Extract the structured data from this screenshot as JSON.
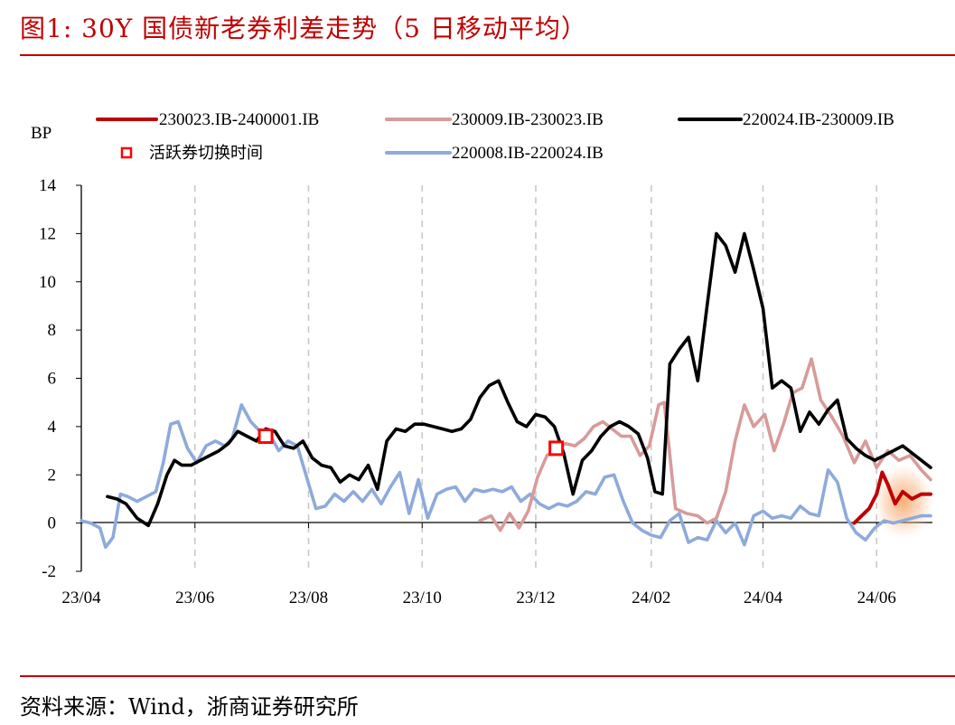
{
  "figure": {
    "title": "图1:  30Y 国债新老券利差走势（5 日移动平均）",
    "source": "资料来源：Wind，浙商证券研究所"
  },
  "chart_data": {
    "type": "line",
    "ylabel": "BP",
    "xlabel": "",
    "ylim": [
      -2,
      14
    ],
    "yticks": [
      -2,
      0,
      2,
      4,
      6,
      8,
      10,
      12,
      14
    ],
    "x_ticks": [
      "23/04",
      "23/06",
      "23/08",
      "23/10",
      "23/12",
      "24/02",
      "24/04",
      "24/06"
    ],
    "x_tick_dates": [
      "2023-04-01",
      "2023-06-01",
      "2023-08-01",
      "2023-10-01",
      "2023-12-01",
      "2024-02-01",
      "2024-04-01",
      "2024-06-01"
    ],
    "xlim": [
      "2023-04-01",
      "2024-06-30"
    ],
    "vertical_gridlines": "dashed",
    "legend_position": "top",
    "series": [
      {
        "name": "230023.IB-2400001.IB",
        "color": "#c00000",
        "highlight": true,
        "x": [
          "2024-05-20",
          "2024-05-24",
          "2024-05-28",
          "2024-06-01",
          "2024-06-04",
          "2024-06-07",
          "2024-06-11",
          "2024-06-15",
          "2024-06-20",
          "2024-06-25",
          "2024-06-30"
        ],
        "y": [
          0.0,
          0.3,
          0.6,
          1.2,
          2.1,
          1.6,
          0.8,
          1.3,
          1.0,
          1.2,
          1.2
        ]
      },
      {
        "name": "230009.IB-230023.IB",
        "color": "#d89a9a",
        "x": [
          "2023-11-01",
          "2023-11-07",
          "2023-11-12",
          "2023-11-17",
          "2023-11-22",
          "2023-11-27",
          "2023-12-02",
          "2023-12-07",
          "2023-12-12",
          "2023-12-17",
          "2023-12-22",
          "2023-12-27",
          "2024-01-01",
          "2024-01-06",
          "2024-01-11",
          "2024-01-16",
          "2024-01-21",
          "2024-01-26",
          "2024-01-31",
          "2024-02-05",
          "2024-02-08",
          "2024-02-14",
          "2024-02-20",
          "2024-02-26",
          "2024-03-02",
          "2024-03-07",
          "2024-03-12",
          "2024-03-17",
          "2024-03-22",
          "2024-03-27",
          "2024-04-02",
          "2024-04-07",
          "2024-04-12",
          "2024-04-17",
          "2024-04-22",
          "2024-04-27",
          "2024-05-02",
          "2024-05-08",
          "2024-05-14",
          "2024-05-20",
          "2024-05-26",
          "2024-06-01",
          "2024-06-07",
          "2024-06-13",
          "2024-06-19",
          "2024-06-25",
          "2024-06-30"
        ],
        "y": [
          0.1,
          0.3,
          -0.3,
          0.4,
          -0.2,
          0.5,
          1.9,
          2.8,
          3.1,
          3.3,
          3.2,
          3.5,
          4.0,
          4.2,
          3.9,
          3.6,
          3.6,
          2.8,
          3.2,
          4.9,
          5.0,
          0.6,
          0.4,
          0.3,
          0.0,
          0.2,
          1.3,
          3.4,
          4.9,
          4.0,
          4.5,
          3.0,
          4.1,
          5.4,
          5.6,
          6.8,
          5.1,
          4.4,
          3.6,
          2.5,
          3.4,
          2.3,
          3.0,
          2.6,
          2.8,
          2.2,
          1.8
        ]
      },
      {
        "name": "220024.IB-230009.IB",
        "color": "#000000",
        "x": [
          "2023-04-15",
          "2023-04-20",
          "2023-04-25",
          "2023-05-01",
          "2023-05-07",
          "2023-05-12",
          "2023-05-17",
          "2023-05-21",
          "2023-05-25",
          "2023-05-30",
          "2023-06-04",
          "2023-06-09",
          "2023-06-14",
          "2023-06-19",
          "2023-06-24",
          "2023-06-29",
          "2023-07-04",
          "2023-07-09",
          "2023-07-14",
          "2023-07-19",
          "2023-07-24",
          "2023-07-29",
          "2023-08-03",
          "2023-08-08",
          "2023-08-13",
          "2023-08-18",
          "2023-08-23",
          "2023-08-28",
          "2023-09-02",
          "2023-09-07",
          "2023-09-12",
          "2023-09-17",
          "2023-09-22",
          "2023-09-27",
          "2023-10-02",
          "2023-10-07",
          "2023-10-12",
          "2023-10-17",
          "2023-10-22",
          "2023-10-27",
          "2023-11-01",
          "2023-11-06",
          "2023-11-11",
          "2023-11-16",
          "2023-11-21",
          "2023-11-26",
          "2023-12-01",
          "2023-12-06",
          "2023-12-11",
          "2023-12-16",
          "2023-12-21",
          "2023-12-26",
          "2023-12-31",
          "2024-01-05",
          "2024-01-10",
          "2024-01-15",
          "2024-01-20",
          "2024-01-25",
          "2024-01-30",
          "2024-02-03",
          "2024-02-07",
          "2024-02-11",
          "2024-02-16",
          "2024-02-21",
          "2024-02-26",
          "2024-03-02",
          "2024-03-07",
          "2024-03-12",
          "2024-03-17",
          "2024-03-22",
          "2024-03-27",
          "2024-04-01",
          "2024-04-06",
          "2024-04-11",
          "2024-04-16",
          "2024-04-21",
          "2024-04-26",
          "2024-05-01",
          "2024-05-06",
          "2024-05-11",
          "2024-05-16",
          "2024-05-21",
          "2024-05-26",
          "2024-05-31",
          "2024-06-05",
          "2024-06-10",
          "2024-06-15",
          "2024-06-20",
          "2024-06-25",
          "2024-06-30"
        ],
        "y": [
          1.1,
          1.0,
          0.8,
          0.2,
          -0.1,
          0.8,
          2.0,
          2.6,
          2.4,
          2.4,
          2.6,
          2.8,
          3.0,
          3.3,
          3.8,
          3.6,
          3.4,
          3.9,
          3.8,
          3.2,
          3.1,
          3.4,
          2.7,
          2.4,
          2.3,
          1.7,
          2.0,
          1.8,
          2.4,
          1.4,
          3.4,
          3.9,
          3.8,
          4.1,
          4.1,
          4.0,
          3.9,
          3.8,
          3.9,
          4.3,
          5.2,
          5.7,
          5.9,
          5.0,
          4.2,
          4.0,
          4.5,
          4.4,
          4.0,
          2.9,
          1.2,
          2.6,
          3.0,
          3.6,
          4.0,
          4.2,
          4.0,
          3.7,
          2.7,
          1.3,
          1.2,
          6.6,
          7.2,
          7.7,
          5.9,
          9.0,
          12.0,
          11.5,
          10.4,
          12.0,
          10.5,
          8.9,
          5.6,
          5.9,
          5.6,
          3.8,
          4.6,
          4.1,
          4.7,
          5.1,
          3.5,
          3.1,
          2.8,
          2.6,
          2.8,
          3.0,
          3.2,
          2.9,
          2.6,
          2.3
        ]
      },
      {
        "name": "220008.IB-220024.IB",
        "color": "#8eaadb",
        "x": [
          "2023-04-01",
          "2023-04-06",
          "2023-04-11",
          "2023-04-14",
          "2023-04-18",
          "2023-04-22",
          "2023-04-26",
          "2023-05-01",
          "2023-05-06",
          "2023-05-11",
          "2023-05-15",
          "2023-05-19",
          "2023-05-23",
          "2023-05-28",
          "2023-06-02",
          "2023-06-07",
          "2023-06-12",
          "2023-06-17",
          "2023-06-21",
          "2023-06-26",
          "2023-07-01",
          "2023-07-06",
          "2023-07-11",
          "2023-07-16",
          "2023-07-21",
          "2023-07-26",
          "2023-07-31",
          "2023-08-05",
          "2023-08-10",
          "2023-08-15",
          "2023-08-20",
          "2023-08-25",
          "2023-08-30",
          "2023-09-04",
          "2023-09-09",
          "2023-09-14",
          "2023-09-19",
          "2023-09-24",
          "2023-09-29",
          "2023-10-04",
          "2023-10-09",
          "2023-10-14",
          "2023-10-19",
          "2023-10-24",
          "2023-10-29",
          "2023-11-03",
          "2023-11-08",
          "2023-11-13",
          "2023-11-18",
          "2023-11-23",
          "2023-11-28",
          "2023-12-03",
          "2023-12-08",
          "2023-12-13",
          "2023-12-18",
          "2023-12-23",
          "2023-12-28",
          "2024-01-02",
          "2024-01-07",
          "2024-01-12",
          "2024-01-17",
          "2024-01-22",
          "2024-01-27",
          "2024-02-01",
          "2024-02-06",
          "2024-02-11",
          "2024-02-16",
          "2024-02-21",
          "2024-02-26",
          "2024-03-02",
          "2024-03-07",
          "2024-03-12",
          "2024-03-17",
          "2024-03-22",
          "2024-03-27",
          "2024-04-01",
          "2024-04-06",
          "2024-04-11",
          "2024-04-16",
          "2024-04-21",
          "2024-04-26",
          "2024-05-01",
          "2024-05-06",
          "2024-05-11",
          "2024-05-16",
          "2024-05-21",
          "2024-05-26",
          "2024-05-31",
          "2024-06-05",
          "2024-06-10",
          "2024-06-15",
          "2024-06-20",
          "2024-06-25",
          "2024-06-30"
        ],
        "y": [
          0.1,
          0.0,
          -0.2,
          -1.0,
          -0.6,
          1.2,
          1.1,
          0.9,
          1.1,
          1.3,
          2.5,
          4.1,
          4.2,
          3.1,
          2.5,
          3.2,
          3.4,
          3.2,
          3.5,
          4.9,
          4.2,
          3.8,
          3.7,
          3.0,
          3.4,
          3.2,
          1.9,
          0.6,
          0.7,
          1.2,
          0.9,
          1.3,
          0.9,
          1.4,
          0.8,
          1.5,
          2.1,
          0.4,
          1.8,
          0.2,
          1.2,
          1.4,
          1.5,
          0.9,
          1.4,
          1.3,
          1.4,
          1.3,
          1.5,
          0.9,
          1.2,
          0.8,
          0.6,
          0.8,
          0.7,
          0.9,
          1.3,
          1.2,
          1.9,
          2.0,
          0.9,
          0.0,
          -0.3,
          -0.5,
          -0.6,
          0.1,
          0.4,
          -0.8,
          -0.6,
          -0.7,
          0.1,
          -0.4,
          0.0,
          -0.9,
          0.3,
          0.5,
          0.2,
          0.3,
          0.2,
          0.7,
          0.4,
          0.3,
          2.2,
          1.7,
          0.2,
          -0.4,
          -0.7,
          -0.2,
          0.1,
          0.0,
          0.1,
          0.2,
          0.3,
          0.3
        ]
      }
    ],
    "markers": {
      "name": "活跃券切换时间",
      "color": "#ff0000",
      "points": [
        {
          "x": "2023-07-09",
          "y": 3.6
        },
        {
          "x": "2023-12-12",
          "y": 3.1
        }
      ]
    }
  }
}
